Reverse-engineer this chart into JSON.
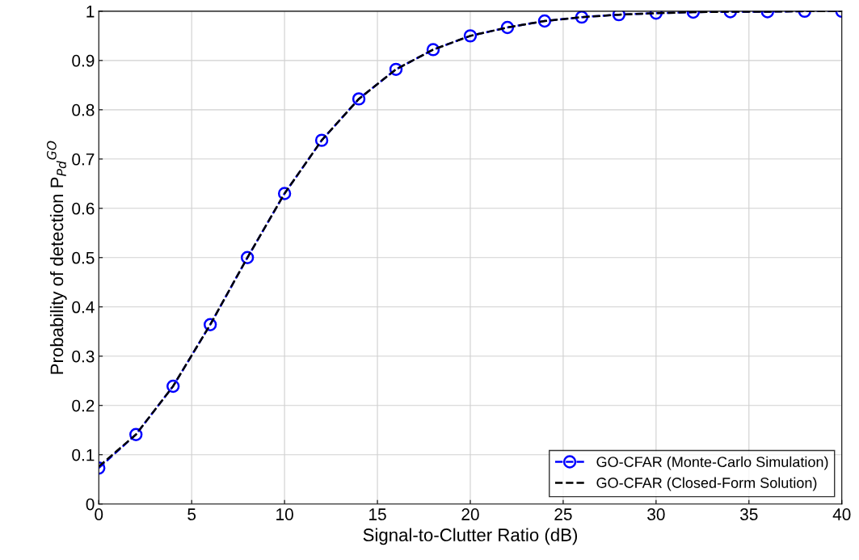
{
  "chart_data": {
    "type": "line",
    "xlabel": "Signal-to-Clutter Ratio (dB)",
    "ylabel": "Probability of detection P$_{Pd}$$^{GO}$",
    "x": [
      0,
      2,
      4,
      6,
      8,
      10,
      12,
      14,
      16,
      18,
      20,
      22,
      24,
      26,
      28,
      30,
      32,
      34,
      36,
      38,
      40
    ],
    "series": [
      {
        "name": "GO-CFAR (Monte-Carlo Simulation)",
        "color": "#0000ff",
        "marker": "circle",
        "line_style": "dashed",
        "values": [
          0.073,
          0.141,
          0.239,
          0.364,
          0.5,
          0.63,
          0.738,
          0.822,
          0.882,
          0.922,
          0.95,
          0.967,
          0.98,
          0.988,
          0.993,
          0.996,
          0.998,
          0.999,
          0.999,
          1.0,
          1.0
        ]
      },
      {
        "name": "GO-CFAR (Closed-Form Solution)",
        "color": "#000000",
        "marker": "none",
        "line_style": "dashed",
        "values": [
          0.076,
          0.141,
          0.239,
          0.364,
          0.5,
          0.63,
          0.738,
          0.822,
          0.882,
          0.922,
          0.95,
          0.967,
          0.98,
          0.988,
          0.993,
          0.996,
          0.998,
          0.999,
          0.999,
          1.0,
          1.0
        ]
      }
    ],
    "xlim": [
      0,
      40
    ],
    "xticks": [
      0,
      5,
      10,
      15,
      20,
      25,
      30,
      35,
      40
    ],
    "ylim": [
      0,
      1
    ],
    "yticks": [
      0,
      0.1,
      0.2,
      0.3,
      0.4,
      0.5,
      0.6,
      0.7,
      0.8,
      0.9,
      1
    ],
    "grid": true,
    "legend": "bottom right"
  }
}
